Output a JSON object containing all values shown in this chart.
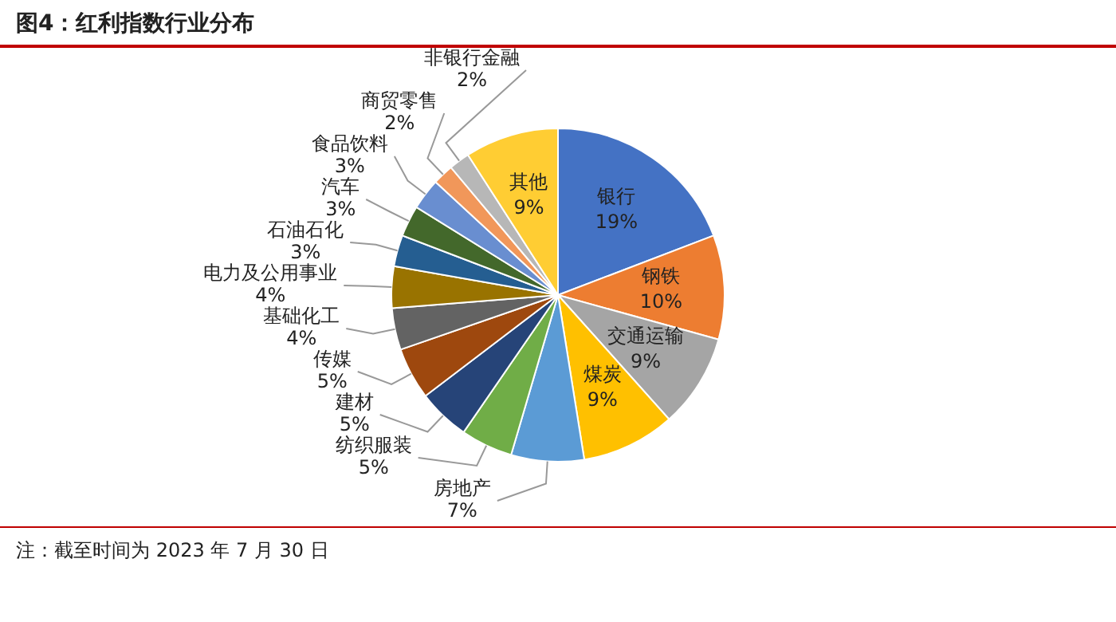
{
  "chart_data": {
    "type": "pie",
    "title": "图4：红利指数行业分布",
    "categories": [
      "银行",
      "钢铁",
      "交通运输",
      "煤炭",
      "房地产",
      "纺织服装",
      "建材",
      "传媒",
      "基础化工",
      "电力及公用事业",
      "石油石化",
      "汽车",
      "食品饮料",
      "商贸零售",
      "非银行金融",
      "其他"
    ],
    "values": [
      19,
      10,
      9,
      9,
      7,
      5,
      5,
      5,
      4,
      4,
      3,
      3,
      3,
      2,
      2,
      9
    ],
    "value_labels": [
      "19%",
      "10%",
      "9%",
      "9%",
      "7%",
      "5%",
      "5%",
      "5%",
      "4%",
      "4%",
      "3%",
      "3%",
      "3%",
      "2%",
      "2%",
      "9%"
    ],
    "colors": [
      "#4472c4",
      "#ed7d31",
      "#a5a5a5",
      "#ffc000",
      "#5b9bd5",
      "#70ad47",
      "#264478",
      "#9e480e",
      "#636363",
      "#997300",
      "#255e91",
      "#43682b",
      "#698ed0",
      "#f1975a",
      "#b7b7b7",
      "#ffcd33"
    ],
    "legend": false,
    "annotations": [
      "注：截至时间为 2023 年 7 月 30 日"
    ]
  }
}
